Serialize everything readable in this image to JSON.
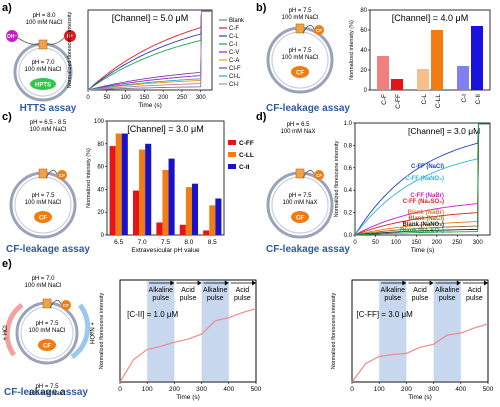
{
  "panels": [
    {
      "letter": "a)",
      "assay": "HTTS assay"
    },
    {
      "letter": "b)",
      "assay": "CF-leakage assay"
    },
    {
      "letter": "c)",
      "assay": "CF-leakage assay"
    },
    {
      "letter": "d)",
      "assay": "CF-leakage assay"
    },
    {
      "letter": "e)",
      "assay": "CF-leakage assay"
    }
  ],
  "schematics": {
    "a": {
      "outside": [
        "pH = 8.0",
        "100 mM NaCl"
      ],
      "inside": [
        "pH = 7.0",
        "100 mM NaCl"
      ],
      "dye": "HPTS",
      "oh": "OH⁻",
      "h": "H⁺"
    },
    "b": {
      "outside": [
        "pH = 7.5",
        "100 mM NaCl"
      ],
      "inside": [
        "pH = 7.5",
        "100 mM NaCl"
      ],
      "dye": "CF",
      "escaped": "CF"
    },
    "c": {
      "outside": [
        "pH = 6.5 - 8.5",
        "100 mM NaCl"
      ],
      "inside": [
        "pH = 7.5",
        "100 mM NaCl"
      ],
      "dye": "CF",
      "escaped": "CF"
    },
    "d": {
      "outside": [
        "pH = 6.5",
        "100 mM NaX"
      ],
      "inside": [
        "pH = 7.5",
        "100 mM NaX"
      ],
      "dye": "CF",
      "escaped": "CF"
    },
    "e": {
      "outside": [
        "pH = 7.0",
        "100 mM NaCl"
      ],
      "inside": [
        "pH = 7.5",
        "100 mM NaCl"
      ],
      "dye": "CF",
      "escaped": "CF",
      "hcl": "+ HCl",
      "naoh": "+ NaOH",
      "bottom": [
        "pH = 7.5",
        "100 mM NaCl"
      ]
    }
  },
  "chart_data": [
    {
      "id": "a",
      "type": "line",
      "annotation": "[Channel] = 5.0 μM",
      "xlabel": "Time (s)",
      "ylabel": "Normalized florescene intensity",
      "xlim": [
        0,
        330
      ],
      "ylim": [
        0,
        1
      ],
      "xticks": [
        0,
        50,
        100,
        150,
        200,
        250,
        300
      ],
      "legend_position": "right",
      "series": [
        {
          "name": "Blank",
          "color": "#7f7f7f",
          "end": 0.04
        },
        {
          "name": "C-F",
          "color": "#e31a1c",
          "end": 0.78
        },
        {
          "name": "C-L",
          "color": "#1f3fbf",
          "end": 0.7
        },
        {
          "name": "C-I",
          "color": "#17a84a",
          "end": 0.62
        },
        {
          "name": "C-V",
          "color": "#a61ec7",
          "end": 0.18
        },
        {
          "name": "C-A",
          "color": "#e4a312",
          "end": 0.12
        },
        {
          "name": "CI-F",
          "color": "#6b4aa6",
          "end": 0.22
        },
        {
          "name": "CI-L",
          "color": "#2aa7b4",
          "end": 0.14
        },
        {
          "name": "CI-I",
          "color": "#c07ab8",
          "end": 0.08
        }
      ]
    },
    {
      "id": "b",
      "type": "bar",
      "annotation": "[Channel] = 4.0 μM",
      "ylabel": "Normalized intensity (%)",
      "ylim": [
        0,
        80
      ],
      "yticks": [
        0,
        20,
        40,
        60,
        80
      ],
      "categories": [
        "C-F",
        "C-FF",
        "C-L",
        "C-LL",
        "C-I",
        "C-II"
      ],
      "values": [
        34,
        11,
        21,
        60,
        24,
        64
      ],
      "colors": [
        "#f08080",
        "#e8121a",
        "#f5c08a",
        "#f07d14",
        "#8080f0",
        "#1a12e0"
      ]
    },
    {
      "id": "c",
      "type": "bar",
      "annotation": "[Channel] = 3.0 μM",
      "xlabel": "Extravesicular pH value",
      "ylabel": "Normalized intensity (%)",
      "ylim": [
        0,
        100
      ],
      "yticks": [
        0,
        20,
        40,
        60,
        80,
        100
      ],
      "categories": [
        "6.5",
        "7.0",
        "7.5",
        "8.0",
        "8.5"
      ],
      "legend_position": "right",
      "series": [
        {
          "name": "C-FF",
          "color": "#e8121a",
          "values": [
            78,
            39,
            11,
            9,
            4
          ]
        },
        {
          "name": "C-LL",
          "color": "#f07d14",
          "values": [
            89,
            75,
            57,
            42,
            26
          ]
        },
        {
          "name": "C-II",
          "color": "#1a12c8",
          "values": [
            89,
            80,
            67,
            45,
            32
          ]
        }
      ]
    },
    {
      "id": "d",
      "type": "line",
      "annotation": "[Channel] = 3.0 μM",
      "xlabel": "Time (s)",
      "ylabel": "Normalized florescene intensity",
      "xlim": [
        0,
        330
      ],
      "ylim": [
        0,
        1.0
      ],
      "xticks": [
        0,
        50,
        100,
        150,
        200,
        250,
        300
      ],
      "yticks": [
        0.0,
        0.2,
        0.4,
        0.6,
        0.8,
        1.0
      ],
      "series": [
        {
          "name": "C-FF (NaCl)",
          "color": "#1f3fbf",
          "end": 0.82
        },
        {
          "name": "C-FF (NaNO₃)",
          "color": "#2fb5d6",
          "end": 0.68
        },
        {
          "name": "C-FF (NaBr)",
          "color": "#c81ec8",
          "end": 0.28
        },
        {
          "name": "C-FF (Na₂SO₄)",
          "color": "#e31a1c",
          "end": 0.2
        },
        {
          "name": "Blank (NaBr)",
          "color": "#e47d10",
          "end": 0.12
        },
        {
          "name": "Blank (NaCl)",
          "color": "#8a6d2b",
          "end": 0.08
        },
        {
          "name": "Blank (NaNO₃)",
          "color": "#222222",
          "end": 0.05
        },
        {
          "name": "Blank (Na₂SO₄)",
          "color": "#1aa14a",
          "end": 0.03
        }
      ]
    },
    {
      "id": "e1",
      "type": "line",
      "annotation": "[C-II] = 1.0 μM",
      "xlabel": "Time (s)",
      "ylabel": "Normalized florescene intensity",
      "xlim": [
        0,
        500
      ],
      "ylim": [
        0,
        1.0
      ],
      "xticks": [
        0,
        100,
        200,
        300,
        400,
        500
      ],
      "pulses": [
        {
          "label": [
            "Alkaline",
            "pulse"
          ],
          "from": 100,
          "to": 200,
          "shaded": true
        },
        {
          "label": [
            "Acid",
            "pulse"
          ],
          "from": 200,
          "to": 300,
          "shaded": false
        },
        {
          "label": [
            "Alkaline",
            "pulse"
          ],
          "from": 300,
          "to": 400,
          "shaded": true
        },
        {
          "label": [
            "Acid",
            "pulse"
          ],
          "from": 400,
          "to": 500,
          "shaded": false
        }
      ],
      "series": [
        {
          "name": "",
          "color": "#f08a8a",
          "x": [
            0,
            50,
            100,
            150,
            200,
            250,
            300,
            350,
            400,
            450,
            500
          ],
          "y": [
            0.0,
            0.22,
            0.32,
            0.35,
            0.39,
            0.42,
            0.47,
            0.6,
            0.63,
            0.68,
            0.72
          ]
        }
      ]
    },
    {
      "id": "e2",
      "type": "line",
      "annotation": "[C-FF] = 3.0 μM",
      "xlabel": "Time (s)",
      "ylabel": "Normalized florescene intensity",
      "xlim": [
        0,
        500
      ],
      "ylim": [
        0,
        1.0
      ],
      "xticks": [
        0,
        100,
        200,
        300,
        400,
        500
      ],
      "pulses": [
        {
          "label": [
            "Alkaline",
            "pulse"
          ],
          "from": 100,
          "to": 200,
          "shaded": true
        },
        {
          "label": [
            "Acid",
            "pulse"
          ],
          "from": 200,
          "to": 300,
          "shaded": false
        },
        {
          "label": [
            "Alkaline",
            "pulse"
          ],
          "from": 300,
          "to": 400,
          "shaded": true
        },
        {
          "label": [
            "Acid",
            "pulse"
          ],
          "from": 400,
          "to": 500,
          "shaded": false
        }
      ],
      "series": [
        {
          "name": "",
          "color": "#f08a8a",
          "x": [
            0,
            50,
            100,
            150,
            200,
            250,
            300,
            350,
            400,
            450,
            500
          ],
          "y": [
            0.0,
            0.18,
            0.25,
            0.27,
            0.28,
            0.34,
            0.37,
            0.46,
            0.48,
            0.53,
            0.57
          ]
        }
      ]
    }
  ]
}
